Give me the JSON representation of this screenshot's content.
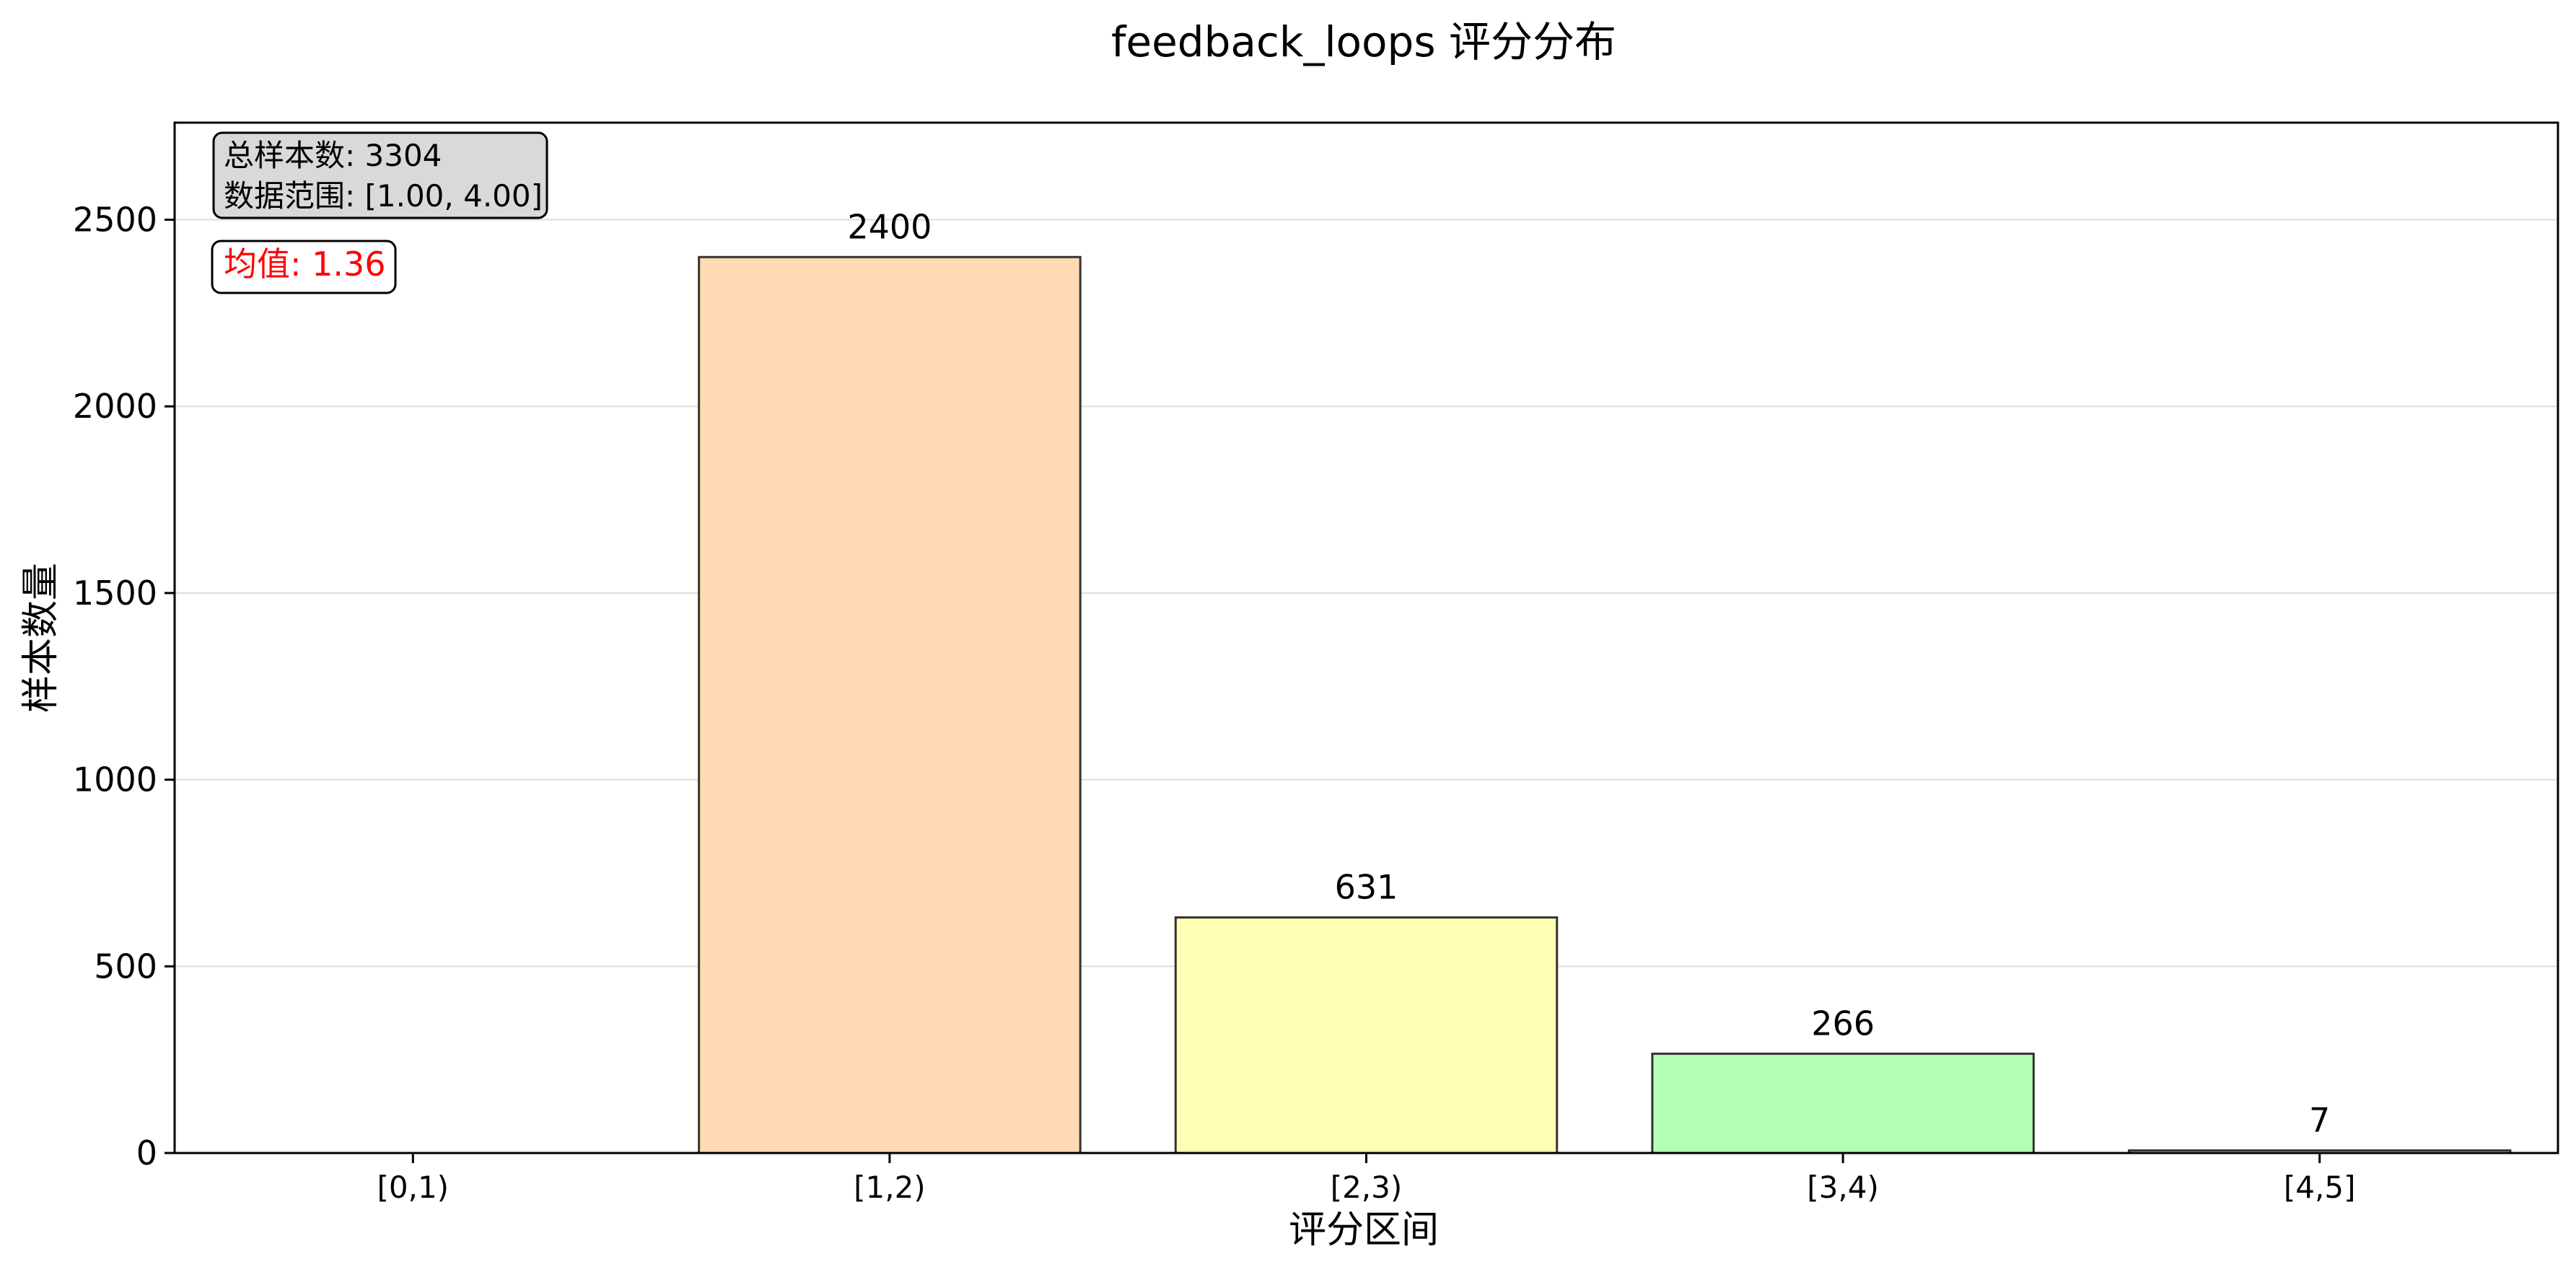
{
  "chart_data": {
    "type": "bar",
    "title": "feedback_loops 评分分布",
    "xlabel": "评分区间",
    "ylabel": "样本数量",
    "categories": [
      "[0,1)",
      "[1,2)",
      "[2,3)",
      "[3,4)",
      "[4,5]"
    ],
    "values": [
      0,
      2400,
      631,
      266,
      7
    ],
    "value_labels": [
      "",
      "2400",
      "631",
      "266",
      "7"
    ],
    "bar_colors": [
      "#FFB3B3",
      "#FFDAB3",
      "#FFFFB3",
      "#B3FFB3",
      "#B3E0FF"
    ],
    "ylim": [
      0,
      2760
    ],
    "yticks": [
      0,
      500,
      1000,
      1500,
      2000,
      2500
    ],
    "grid": "y",
    "annotations": {
      "stats_line1": "总样本数: 3304",
      "stats_line2": "数据范围: [1.00, 4.00]",
      "mean_label": "均值: 1.36"
    }
  },
  "colors": {
    "edge": "#333333",
    "mean_text": "#FF0000",
    "stats_box_fill": "#D9D9D9",
    "grid": "#DDDDDD"
  }
}
